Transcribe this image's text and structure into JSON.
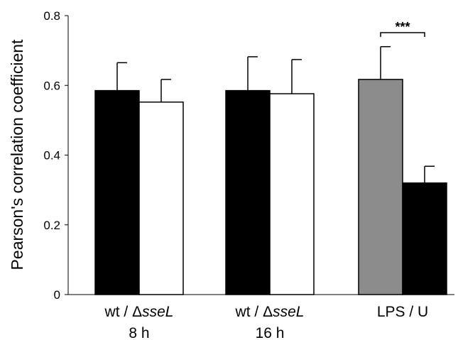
{
  "chart_data": {
    "type": "bar",
    "title": "",
    "xlabel": "",
    "ylabel": "Pearson's correlation coefficient",
    "ylim": [
      0,
      0.8
    ],
    "yticks": [
      {
        "value": 0,
        "label": "0"
      },
      {
        "value": 0.2,
        "label": "0.2"
      },
      {
        "value": 0.4,
        "label": "0.4"
      },
      {
        "value": 0.6,
        "label": "0.6"
      },
      {
        "value": 0.8,
        "label": "0.8"
      }
    ],
    "grid": false,
    "groups": [
      {
        "label_parts": [
          {
            "text": "wt / ",
            "italic": false
          },
          {
            "text": "Δ",
            "italic": false
          },
          {
            "text": "sseL",
            "italic": true
          }
        ],
        "sublabel": "8 h",
        "bars": [
          {
            "value": 0.585,
            "error": 0.08,
            "color": "#000000"
          },
          {
            "value": 0.552,
            "error": 0.065,
            "color": "#ffffff"
          }
        ]
      },
      {
        "label_parts": [
          {
            "text": "wt / ",
            "italic": false
          },
          {
            "text": "Δ",
            "italic": false
          },
          {
            "text": "sseL",
            "italic": true
          }
        ],
        "sublabel": "16 h",
        "bars": [
          {
            "value": 0.585,
            "error": 0.097,
            "color": "#000000"
          },
          {
            "value": 0.576,
            "error": 0.098,
            "color": "#ffffff"
          }
        ]
      },
      {
        "label_parts": [
          {
            "text": "LPS / U",
            "italic": false
          }
        ],
        "sublabel": "",
        "bars": [
          {
            "value": 0.617,
            "error": 0.094,
            "color": "#8c8c8c"
          },
          {
            "value": 0.32,
            "error": 0.048,
            "color": "#000000"
          }
        ]
      }
    ],
    "annotations": [
      {
        "group": 2,
        "text": "***"
      }
    ]
  }
}
